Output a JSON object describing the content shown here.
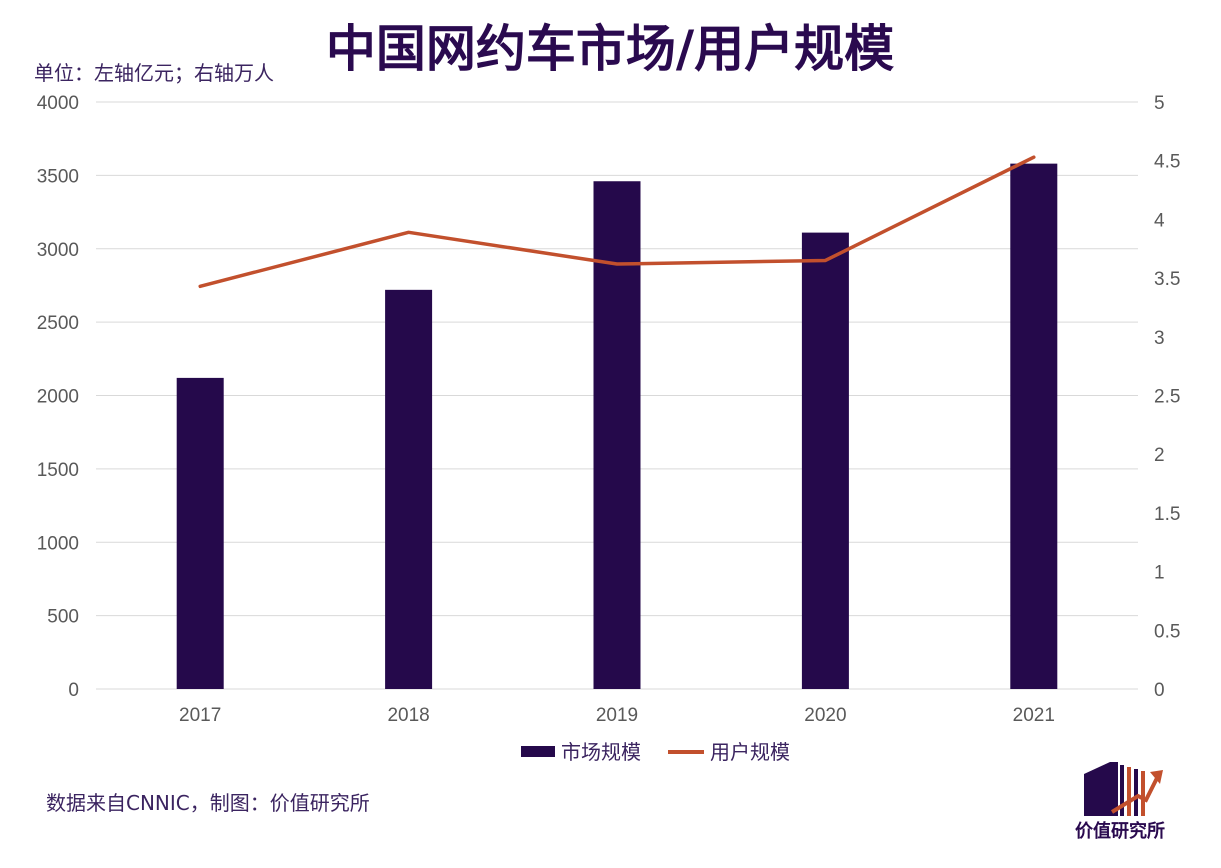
{
  "colors": {
    "bar": "#25094b",
    "line": "#c2502d",
    "grid": "#d9d9d9",
    "title": "#2a0a4f",
    "tick": "#595959"
  },
  "unit_note": "单位：左轴亿元；右轴万人",
  "source_note": "数据来自CNNIC，制图：价值研究所",
  "logo": {
    "icon": "bar-growth-logo-icon",
    "text": "价值研究所"
  },
  "chart_data": {
    "type": "bar",
    "title": "中国网约车市场/用户规模",
    "categories": [
      "2017",
      "2018",
      "2019",
      "2020",
      "2021"
    ],
    "series": [
      {
        "name": "市场规模",
        "type": "bar",
        "axis": "left",
        "values": [
          2120,
          2720,
          3460,
          3110,
          3580
        ]
      },
      {
        "name": "用户规模",
        "type": "line",
        "axis": "right",
        "values": [
          3.43,
          3.89,
          3.62,
          3.65,
          4.53
        ]
      }
    ],
    "left_axis": {
      "ylim": [
        0,
        4000
      ],
      "ticks": [
        "0",
        "500",
        "1000",
        "1500",
        "2000",
        "2500",
        "3000",
        "3500",
        "4000"
      ]
    },
    "right_axis": {
      "ylim": [
        0,
        5
      ],
      "ticks": [
        "0",
        "0.5",
        "1",
        "1.5",
        "2",
        "2.5",
        "3",
        "3.5",
        "4",
        "4.5",
        "5"
      ]
    },
    "legend": {
      "position": "bottom",
      "items": [
        "市场规模",
        "用户规模"
      ]
    },
    "grid": true
  }
}
